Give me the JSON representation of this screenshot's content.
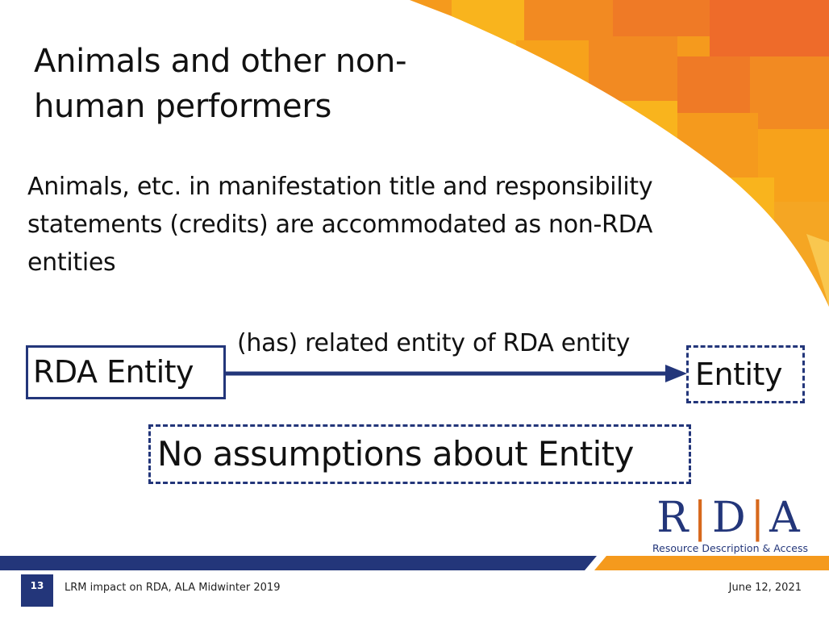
{
  "slide": {
    "title": "Animals and other non-human performers",
    "body": "Animals, etc. in manifestation title and responsibility statements (credits) are accommodated as non-RDA entities"
  },
  "diagram": {
    "source_label": "RDA Entity",
    "relation_label": "(has) related entity of RDA entity",
    "target_label": "Entity",
    "note": "No assumptions about Entity",
    "line_color": "#23367a"
  },
  "logo": {
    "letter_1": "R",
    "letter_2": "D",
    "letter_3": "A",
    "tagline": "Resource Description & Access",
    "brand_color": "#23367a",
    "accent_color": "#d7681c"
  },
  "footer": {
    "page_number": "13",
    "left_text": "LRM impact on RDA, ALA Midwinter 2019",
    "right_text": "June 12, 2021"
  },
  "theme": {
    "orange_palette": [
      "#f7a21b",
      "#f59a1d",
      "#f28a22",
      "#ef7a26",
      "#f9b41d",
      "#ee6b2a"
    ]
  }
}
